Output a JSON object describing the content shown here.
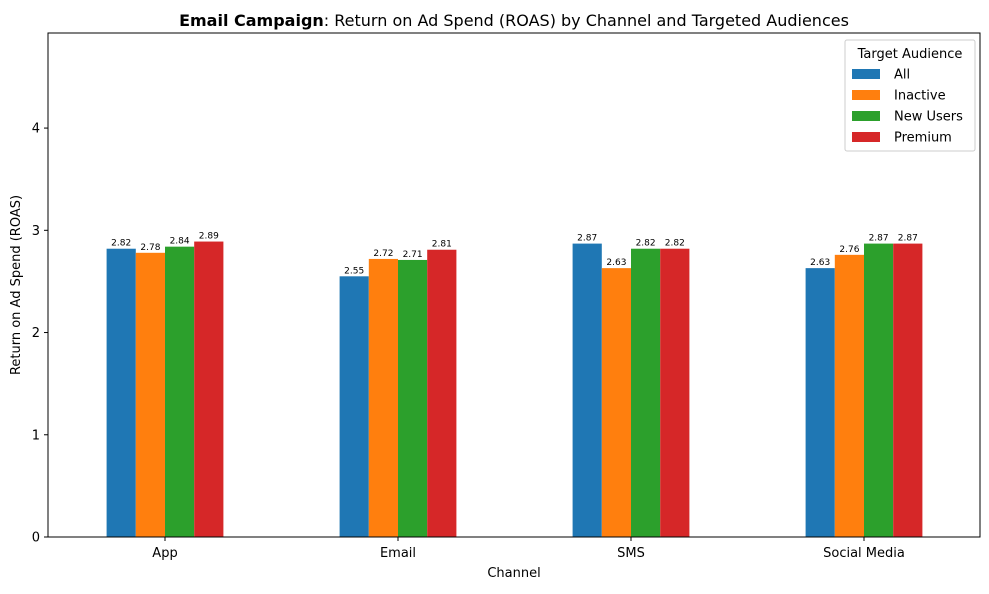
{
  "chart_data": {
    "type": "bar",
    "title_bold": "Email Campaign",
    "title_rest": ": Return on Ad Spend (ROAS) by Channel and Targeted Audiences",
    "xlabel": "Channel",
    "ylabel": "Return on Ad Spend (ROAS)",
    "categories": [
      "App",
      "Email",
      "SMS",
      "Social Media"
    ],
    "ylim": [
      0,
      4.93
    ],
    "yticks": [
      0,
      1,
      2,
      3,
      4
    ],
    "legend_title": "Target Audience",
    "legend_position": "top-right",
    "grid": false,
    "series": [
      {
        "name": "All",
        "color": "#1f77b4",
        "values": [
          2.82,
          2.55,
          2.87,
          2.63
        ]
      },
      {
        "name": "Inactive",
        "color": "#ff7f0e",
        "values": [
          2.78,
          2.72,
          2.63,
          2.76
        ]
      },
      {
        "name": "New Users",
        "color": "#2ca02c",
        "values": [
          2.84,
          2.71,
          2.82,
          2.87
        ]
      },
      {
        "name": "Premium",
        "color": "#d62728",
        "values": [
          2.89,
          2.81,
          2.82,
          2.87
        ]
      }
    ]
  }
}
